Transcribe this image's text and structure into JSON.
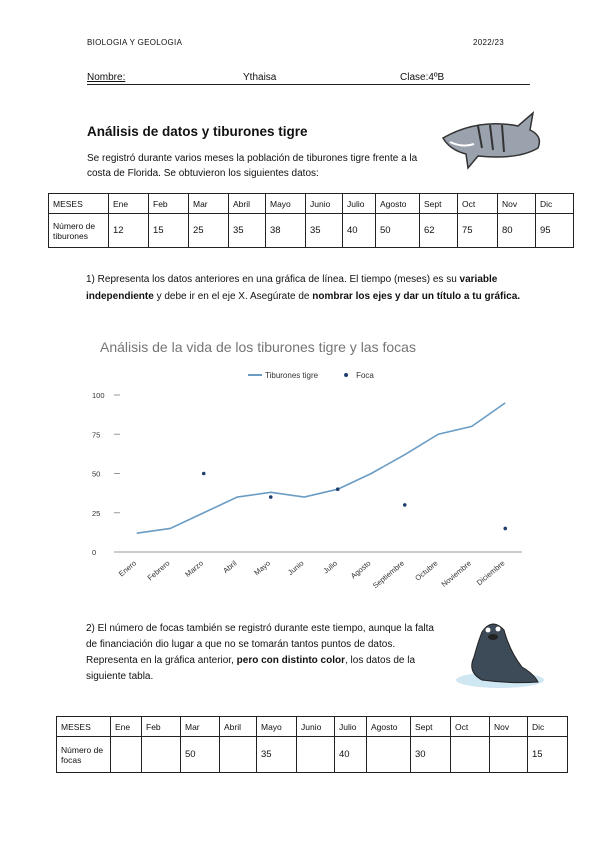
{
  "header": {
    "subject": "BIOLOGIA Y GEOLOGIA",
    "year": "2022/23"
  },
  "student": {
    "name_label": "Nombre:",
    "name": "Ythaisa",
    "class": "Clase:4ºB"
  },
  "title": "Análisis de datos y tiburones tigre",
  "intro": "Se registró durante varios meses la población de tiburones tigre frente a la costa de Florida. Se obtuvieron los siguientes datos:",
  "table1": {
    "header": [
      "MESES",
      "Ene",
      "Feb",
      "Mar",
      "Abril",
      "Mayo",
      "Junio",
      "Julio",
      "Agosto",
      "Sept",
      "Oct",
      "Nov",
      "Dic"
    ],
    "rows": [
      [
        "Número de tiburones",
        12,
        15,
        25,
        35,
        38,
        35,
        40,
        50,
        62,
        75,
        80,
        95
      ]
    ]
  },
  "instruction1": [
    {
      "text": "1) Representa los datos anteriores en una gráfica de línea. El tiempo (meses) es su ",
      "bold": false
    },
    {
      "text": "variable independiente",
      "bold": true
    },
    {
      "text": " y debe ir en el eje X. Asegúrate de ",
      "bold": false
    },
    {
      "text": "nombrar los ejes y dar un título a tu gráfica.",
      "bold": true
    }
  ],
  "chart": {
    "type": "line",
    "title": "Análisis de la vida de los tiburones tigre y las focas",
    "categories": [
      "Enero",
      "Febrero",
      "Marzo",
      "Abril",
      "Mayo",
      "Junio",
      "Julio",
      "Agosto",
      "Septiembre",
      "Octubre",
      "Noviembre",
      "Diciembre"
    ],
    "series": [
      {
        "name": "Tiburones tigre",
        "color": "#6a9cc4",
        "style": "line",
        "values": [
          12,
          15,
          25,
          35,
          38,
          35,
          40,
          50,
          62,
          75,
          80,
          95
        ]
      },
      {
        "name": "Foca",
        "color": "#1f3f6e",
        "style": "points",
        "values": [
          null,
          null,
          50,
          null,
          35,
          null,
          40,
          null,
          30,
          null,
          null,
          15
        ]
      }
    ],
    "ylim": [
      0,
      100
    ],
    "yticks": [
      0,
      25,
      50,
      75,
      100
    ],
    "legend": "top"
  },
  "instruction2": [
    {
      "text": "2) El número de focas también se registró durante este tiempo, aunque la falta de financiación dio lugar a que no se tomarán tantos puntos de datos. Representa en la gráfica anterior, ",
      "bold": false
    },
    {
      "text": "pero con distinto color",
      "bold": true
    },
    {
      "text": ", los datos de la siguiente tabla.",
      "bold": false
    }
  ],
  "table2": {
    "header": [
      "MESES",
      "Ene",
      "Feb",
      "Mar",
      "Abril",
      "Mayo",
      "Junio",
      "Julio",
      "Agosto",
      "Sept",
      "Oct",
      "Nov",
      "Dic"
    ],
    "rows": [
      [
        "Número de focas",
        null,
        null,
        50,
        null,
        35,
        null,
        40,
        null,
        30,
        null,
        null,
        15
      ]
    ]
  }
}
